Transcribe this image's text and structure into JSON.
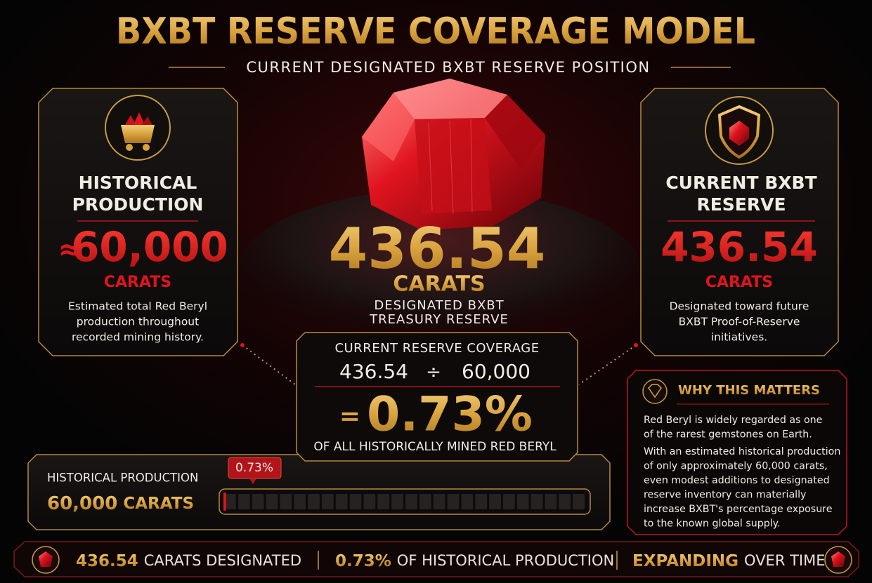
{
  "header": {
    "title": "BXBT RESERVE COVERAGE MODEL",
    "subtitle": "CURRENT DESIGNATED BXBT RESERVE POSITION"
  },
  "left_card": {
    "title_lines": [
      "HISTORICAL",
      "PRODUCTION"
    ],
    "prefix": "≈",
    "value": "60,000",
    "unit": "CARATS",
    "description_lines": [
      "Estimated total Red Beryl",
      "production throughout",
      "recorded mining history."
    ]
  },
  "center": {
    "value": "436.54",
    "unit": "CARATS",
    "caption_lines": [
      "DESIGNATED BXBT",
      "TREASURY RESERVE"
    ]
  },
  "right_card": {
    "title_lines": [
      "CURRENT BXBT",
      "RESERVE"
    ],
    "value": "436.54",
    "unit": "CARATS",
    "description_lines": [
      "Designated toward future",
      "BXBT Proof-of-Reserve",
      "initiatives."
    ]
  },
  "coverage": {
    "title": "CURRENT RESERVE COVERAGE",
    "numerator": "436.54",
    "operator": "÷",
    "denominator": "60,000",
    "equals": "=",
    "result": "0.73%",
    "caption": "OF ALL HISTORICALLY MINED RED BERYL"
  },
  "progress": {
    "label": "HISTORICAL PRODUCTION",
    "value": "60,000",
    "unit": "CARATS",
    "fill_percent": 0.73,
    "marker_label": "0.73%"
  },
  "why": {
    "title": "WHY THIS MATTERS",
    "paragraphs": [
      [
        "Red Beryl is widely regarded as one",
        "of the rarest gemstones on Earth."
      ],
      [
        "With an estimated historical production",
        "of only approximately 60,000 carats,",
        "even modest additions to designated",
        "reserve inventory can materially",
        "increase BXBT's percentage exposure",
        "to the known global supply."
      ]
    ]
  },
  "footer": {
    "items": [
      {
        "strong": "436.54",
        "text": "CARATS DESIGNATED"
      },
      {
        "strong": "0.73%",
        "text": "OF HISTORICAL PRODUCTION"
      },
      {
        "strong": "EXPANDING",
        "text": "OVER TIME"
      }
    ]
  }
}
